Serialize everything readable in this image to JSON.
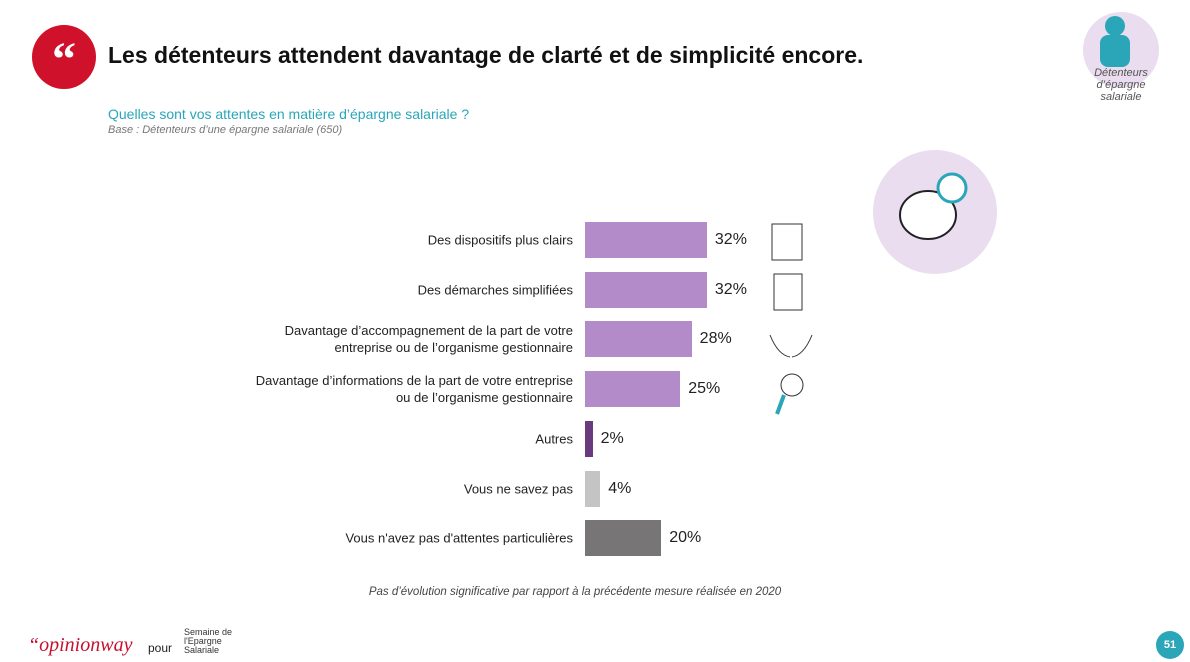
{
  "header": {
    "title": "Les détenteurs attendent davantage de clarté et de simplicité encore.",
    "question": "Quelles sont vos attentes en matière d’épargne salariale ?",
    "base": "Base : Détenteurs d’une épargne salariale (650)",
    "badge": "Détenteurs d’épargne salariale"
  },
  "chart_data": {
    "type": "bar",
    "orientation": "horizontal",
    "categories": [
      "Des dispositifs plus clairs",
      "Des démarches simplifiées",
      "Davantage d’accompagnement de la part de votre entreprise ou de l’organisme gestionnaire",
      "Davantage d’informations de la part de votre entreprise ou de l’organisme gestionnaire",
      "Autres",
      "Vous ne savez pas",
      "Vous n'avez pas d'attentes particulières"
    ],
    "values": [
      32,
      32,
      28,
      25,
      2,
      4,
      20
    ],
    "value_labels": [
      "32%",
      "32%",
      "28%",
      "25%",
      "2%",
      "4%",
      "20%"
    ],
    "colors": [
      "#b48bc9",
      "#b48bc9",
      "#b48bc9",
      "#b48bc9",
      "#6a3a7e",
      "#c4c4c4",
      "#777575"
    ]
  },
  "note": "Pas d’évolution significative par rapport à la précédente mesure réalisée en 2020",
  "footer": {
    "brand": "“opinionway",
    "connector": "pour",
    "partner": "Semaine de l'Epargne Salariale",
    "page": "51"
  }
}
